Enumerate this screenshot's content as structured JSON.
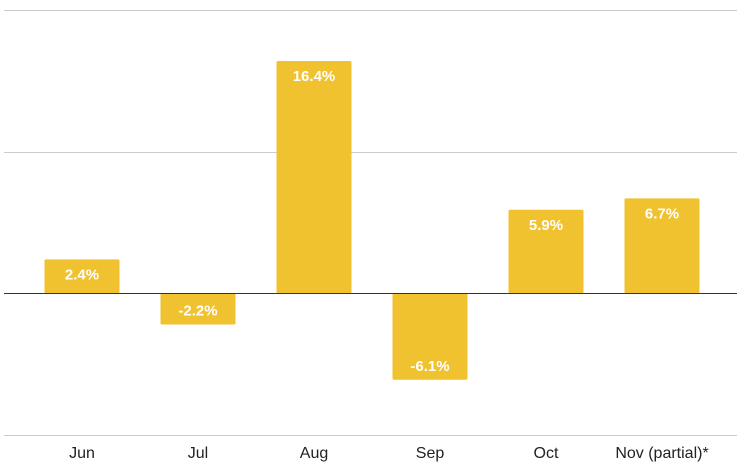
{
  "chart_data": {
    "type": "bar",
    "categories": [
      "Jun",
      "Jul",
      "Aug",
      "Sep",
      "Oct",
      "Nov (partial)*"
    ],
    "values": [
      2.4,
      -2.2,
      16.4,
      -6.1,
      5.9,
      6.7
    ],
    "value_labels": [
      "2.4%",
      "-2.2%",
      "16.4%",
      "-6.1%",
      "5.9%",
      "6.7%"
    ],
    "ylim": [
      -10,
      20
    ],
    "gridlines": [
      -10,
      0,
      10,
      20
    ],
    "grid": true,
    "legend": "none",
    "bar_color": "#f0c230",
    "label_color": "#ffffff"
  }
}
